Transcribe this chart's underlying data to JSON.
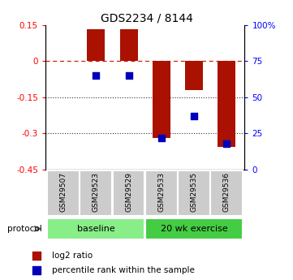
{
  "title": "GDS2234 / 8144",
  "samples": [
    "GSM29507",
    "GSM29523",
    "GSM29529",
    "GSM29533",
    "GSM29535",
    "GSM29536"
  ],
  "log2_ratio": [
    0.0,
    0.133,
    0.133,
    -0.32,
    -0.12,
    -0.355
  ],
  "percentile_rank": [
    null,
    65,
    65,
    22,
    37,
    18
  ],
  "ylim_left": [
    -0.45,
    0.15
  ],
  "yticks_left": [
    0.15,
    0.0,
    -0.15,
    -0.3,
    -0.45
  ],
  "yticks_right": [
    100,
    75,
    50,
    25,
    0
  ],
  "groups": [
    {
      "label": "baseline",
      "indices": [
        0,
        1,
        2
      ],
      "color": "#88ee88"
    },
    {
      "label": "20 wk exercise",
      "indices": [
        3,
        4,
        5
      ],
      "color": "#44cc44"
    }
  ],
  "bar_color": "#aa1100",
  "dot_color": "#0000bb",
  "dashed_line_color": "#cc2200",
  "dotted_line_color": "#333333",
  "bar_width": 0.55,
  "sample_bg_color": "#cccccc",
  "legend_bar_label": "log2 ratio",
  "legend_dot_label": "percentile rank within the sample",
  "protocol_label": "protocol",
  "dot_size": 40
}
